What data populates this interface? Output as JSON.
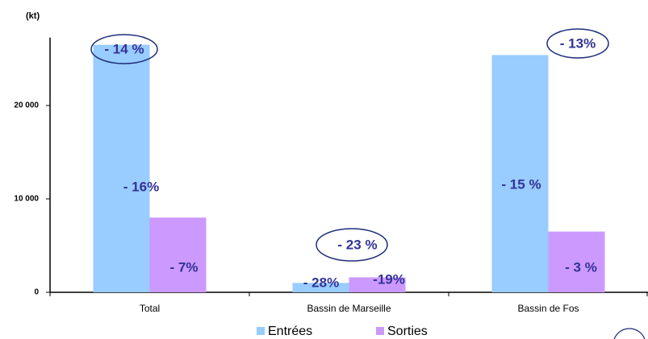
{
  "chart_data": {
    "type": "bar",
    "y_label": "(kt)",
    "categories": [
      "Total",
      "Bassin de Marseille",
      "Bassin de Fos"
    ],
    "series": [
      {
        "name": "Entrées",
        "color": "#99ccff",
        "values": [
          26500,
          1000,
          25400
        ]
      },
      {
        "name": "Sorties",
        "color": "#cc99ff",
        "values": [
          8000,
          1600,
          6500
        ]
      }
    ],
    "ylim": [
      0,
      27000
    ],
    "yticks": [
      0,
      {
        "value": 10000,
        "label": "10 000"
      },
      {
        "value": 20000,
        "label": "20 000"
      }
    ],
    "grid": false,
    "legend": "bottom",
    "annotations": [
      "- 16%",
      "- 7%",
      "- 28%",
      "-19%",
      "- 15 %",
      "- 3 %",
      "- 14 %",
      "- 23 %",
      "- 13%"
    ]
  }
}
